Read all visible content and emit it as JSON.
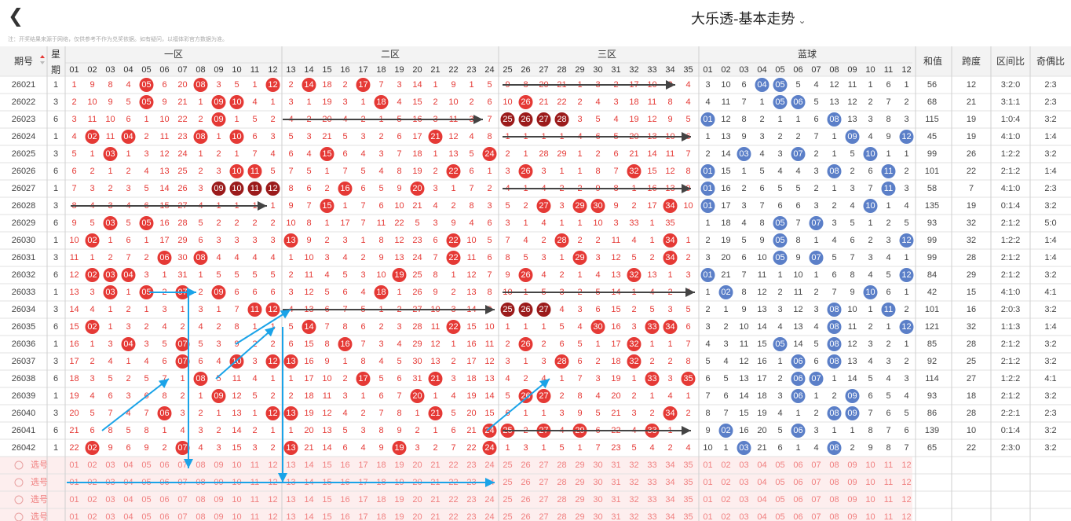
{
  "header": {
    "back_icon": "chevron-left-icon",
    "title": "大乐透-基本走势",
    "title_chevron": "chevron-down-icon"
  },
  "note": "注：开奖结果来源于网络，仅供参考不作为兑奖依据。如有疑问，以福体彩官方数据为准。",
  "columns": {
    "period": "期号",
    "week_top": "星",
    "week_bottom": "期",
    "zone1": "一区",
    "zone2": "二区",
    "zone3": "三区",
    "blue": "蓝球",
    "sum": "和值",
    "span": "跨度",
    "zone_ratio": "区间比",
    "odd_even": "奇偶比"
  },
  "select_label": "选号",
  "colors": {
    "red": "#e53935",
    "dark_red": "#9b1b1b",
    "blue": "#5b7fc8",
    "pick": "#f08080",
    "pick_bg": "#fdeeee",
    "arrow_dark": "#444444",
    "arrow_cyan": "#1aa3e8"
  },
  "rows": [
    {
      "p": "26021",
      "w": 1,
      "r": "1 9 8 4 05 6 20 08 3 5 1 12 2 14 18 2 17 7 3 14 1 9 1 5 9 8 20 21 1 3 2 17 10 3 4 3",
      "b": "3 10 6 04 05 5 4 12 11 1 6 1",
      "s": "56",
      "k": "12",
      "z": "3:2:0",
      "o": "2:3"
    },
    {
      "p": "26022",
      "w": 3,
      "r": "2 10 9 5 05 9 21 1 09 10 4 1 3 1 19 3 1 18 4 15 2 10 2 6 10 26 21 22 2 4 3 18 11 8 4 2",
      "b": "4 11 7 1 05 06 5 13 12 2 7 2",
      "s": "68",
      "k": "21",
      "z": "3:1:1",
      "o": "2:3"
    },
    {
      "p": "26023",
      "w": 6,
      "r": "3 11 10 6 1 10 22 2 09 1 5 2 4 2 20 4 2 1 5 16 3 11 3 7 25 26 27 28 3 5 4 19 12 9 5 1",
      "b": "01 12 8 2 1 1 6 08 13 3 8 3",
      "s": "115",
      "k": "19",
      "z": "1:0:4",
      "o": "3:2"
    },
    {
      "p": "26024",
      "w": 1,
      "r": "4 02 11 04 2 11 23 08 1 10 6 3 5 3 21 5 3 2 6 17 21 12 4 8 1 1 1 1 4 6 5 20 13 10 6 1",
      "b": "1 13 9 3 2 2 7 1 09 4 9 12",
      "s": "45",
      "k": "19",
      "z": "4:1:0",
      "o": "1:4"
    },
    {
      "p": "26025",
      "w": 3,
      "r": "5 1 03 1 3 12 24 1 2 1 7 4 6 4 15 6 4 3 7 18 1 13 5 24 2 1 28 29 1 2 6 21 14 11 7 2",
      "b": "2 14 03 4 3 07 2 1 5 10 1 1",
      "s": "99",
      "k": "26",
      "z": "1:2:2",
      "o": "3:2"
    },
    {
      "p": "26026",
      "w": 6,
      "r": "6 2 1 2 4 13 25 2 3 10 11 5 7 5 1 7 5 4 8 19 2 22 6 1 3 26 3 1 1 8 7 32 15 12 8 3",
      "b": "01 15 1 5 4 4 3 08 2 6 11 2",
      "s": "101",
      "k": "22",
      "z": "2:1:2",
      "o": "1:4"
    },
    {
      "p": "26027",
      "w": 1,
      "r": "7 3 2 3 5 14 26 3 09 10 11 12 8 6 2 16 6 5 9 20 3 1 7 2 4 1 4 2 2 9 8 1 16 13 9 4",
      "b": "01 16 2 6 5 5 2 1 3 7 11 3",
      "s": "58",
      "k": "7",
      "z": "4:1:0",
      "o": "2:3"
    },
    {
      "p": "26028",
      "w": 3,
      "r": "8 4 3 4 6 15 27 4 1 1 1 1 9 7 15 1 7 6 10 21 4 2 8 3 5 2 27 3 29 30 9 2 17 34 10 5",
      "b": "01 17 3 7 6 6 3 2 4 10 1 4",
      "s": "135",
      "k": "19",
      "z": "0:1:4",
      "o": "3:2"
    },
    {
      "p": "26029",
      "w": 6,
      "r": "9 5 03 5 05 16 28 5 2 2 2 2 10 8 1 17 7 11 22 5 3 9 4 6 3 1 4 1 1 10 3 33 1 35",
      "b": "1 18 4 8 05 7 07 3 5 1 2 5",
      "s": "93",
      "k": "32",
      "z": "2:1:2",
      "o": "5:0"
    },
    {
      "p": "26030",
      "w": 1,
      "r": "10 02 1 6 1 17 29 6 3 3 3 3 13 9 2 3 1 8 12 23 6 22 10 5 7 4 2 28 2 2 11 4 1 34 1",
      "b": "2 19 5 9 05 8 1 4 6 2 3 12",
      "s": "99",
      "k": "32",
      "z": "1:2:2",
      "o": "1:4"
    },
    {
      "p": "26031",
      "w": 3,
      "r": "11 1 2 7 2 06 30 08 4 4 4 4 1 10 3 4 2 9 13 24 7 22 11 6 8 5 3 1 29 3 12 5 2 34 2",
      "b": "3 20 6 10 05 9 07 5 7 3 4 1",
      "s": "99",
      "k": "28",
      "z": "2:1:2",
      "o": "1:4"
    },
    {
      "p": "26032",
      "w": 6,
      "r": "12 02 03 04 3 1 31 1 5 5 5 5 2 11 4 5 3 10 19 25 8 1 12 7 9 26 4 2 1 4 13 32 13 1 3",
      "b": "01 21 7 11 1 10 1 6 8 4 5 12",
      "s": "84",
      "k": "29",
      "z": "2:1:2",
      "o": "3:2"
    },
    {
      "p": "26033",
      "w": 1,
      "r": "13 3 03 1 05 2 07 2 09 6 6 6 3 12 5 6 4 18 1 26 9 2 13 8 10 1 5 3 2 5 14 1 4 2 4",
      "b": "1 02 8 12 2 11 2 7 9 10 6 1",
      "s": "42",
      "k": "15",
      "z": "4:1:0",
      "o": "4:1"
    },
    {
      "p": "26034",
      "w": 3,
      "r": "14 4 1 2 1 3 1 3 1 7 11 12 4 13 6 7 5 1 2 27 10 3 14 9 25 26 27 4 3 6 15 2 5 3 5",
      "b": "2 1 9 13 3 12 3 08 10 1 11 2",
      "s": "101",
      "k": "16",
      "z": "2:0:3",
      "o": "3:2"
    },
    {
      "p": "26035",
      "w": 6,
      "r": "15 02 1 3 2 4 2 4 2 8 1 1 5 14 7 8 6 2 3 28 11 22 15 10 1 1 1 5 4 30 16 3 33 34 6",
      "b": "3 2 10 14 4 13 4 08 11 2 1 12",
      "s": "121",
      "k": "32",
      "z": "1:1:3",
      "o": "1:4"
    },
    {
      "p": "26036",
      "w": 1,
      "r": "16 1 3 04 3 5 07 5 3 9 2 2 6 15 8 16 7 3 4 29 12 1 16 11 2 26 2 6 5 1 17 32 1 1 7",
      "b": "4 3 11 15 05 14 5 08 12 3 2 1",
      "s": "85",
      "k": "28",
      "z": "2:1:2",
      "o": "3:2"
    },
    {
      "p": "26037",
      "w": 3,
      "r": "17 2 4 1 4 6 07 6 4 10 3 12 13 16 9 1 8 4 5 30 13 2 17 12 3 1 3 28 6 2 18 32 2 2 8",
      "b": "5 4 12 16 1 06 6 08 13 4 3 2",
      "s": "92",
      "k": "25",
      "z": "2:1:2",
      "o": "3:2"
    },
    {
      "p": "26038",
      "w": 6,
      "r": "18 3 5 2 5 7 1 08 5 11 4 1 1 17 10 2 17 5 6 31 21 3 18 13 4 2 4 1 7 3 19 1 33 3 35",
      "b": "6 5 13 17 2 06 07 1 14 5 4 3",
      "s": "114",
      "k": "27",
      "z": "1:2:2",
      "o": "4:1"
    },
    {
      "p": "26039",
      "w": 1,
      "r": "19 4 6 3 6 8 2 1 09 12 5 2 2 18 11 3 1 6 7 20 1 4 19 14 5 26 27 2 8 4 20 2 1 4 1",
      "b": "7 6 14 18 3 06 1 2 09 6 5 4",
      "s": "93",
      "k": "18",
      "z": "2:1:2",
      "o": "3:2"
    },
    {
      "p": "26040",
      "w": 3,
      "r": "20 5 7 4 7 06 3 2 1 13 1 12 13 19 12 4 2 7 8 1 21 5 20 15 6 1 1 3 9 5 21 3 2 34 2",
      "b": "8 7 15 19 4 1 2 08 09 7 6 5",
      "s": "86",
      "k": "28",
      "z": "2:2:1",
      "o": "2:3"
    },
    {
      "p": "26041",
      "w": 6,
      "r": "21 6 8 5 8 1 4 3 2 14 2 1 1 20 13 5 3 8 9 2 1 6 21 24 25 2 27 4 29 6 22 4 33 1",
      "b": "9 02 16 20 5 06 3 1 1 8 7 6",
      "s": "139",
      "k": "10",
      "z": "0:1:4",
      "o": "3:2"
    },
    {
      "p": "26042",
      "w": 1,
      "r": "22 02 9 6 9 2 07 4 3 15 3 2 13 21 14 6 4 9 19 3 2 7 22 24 1 3 1 5 1 7 23 5 4 2 4",
      "b": "10 1 03 21 6 1 4 08 2 9 8 7",
      "s": "65",
      "k": "22",
      "z": "2:3:0",
      "o": "3:2"
    }
  ]
}
